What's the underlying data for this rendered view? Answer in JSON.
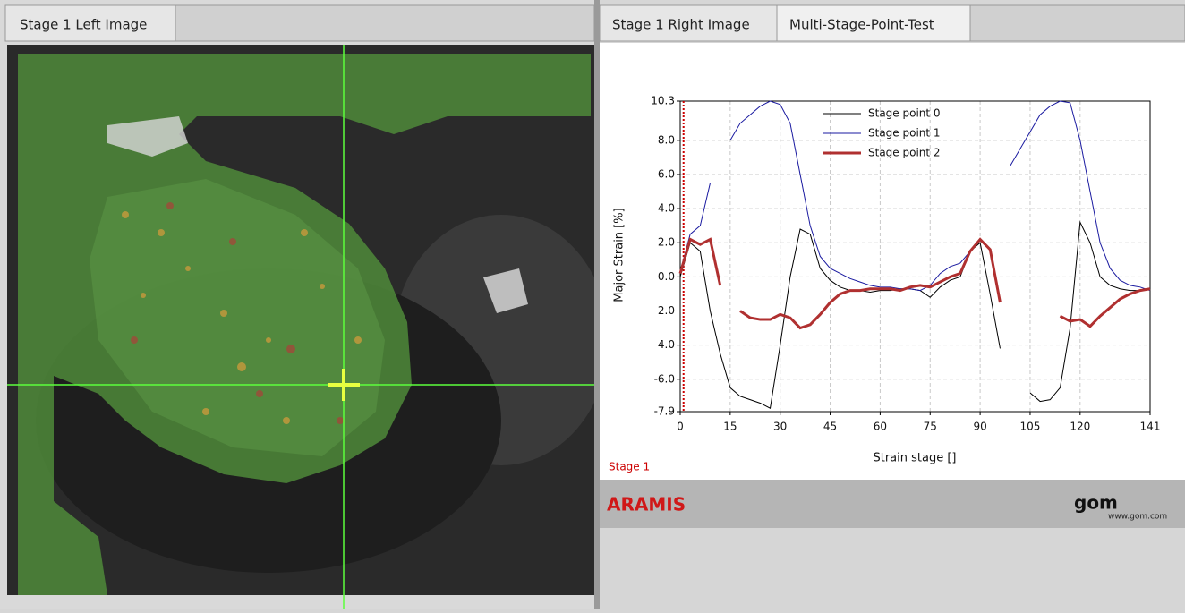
{
  "left_tabs": [
    "Stage 1 Left Image"
  ],
  "right_tabs": [
    "Stage 1 Right Image",
    "Multi-Stage-Point-Test"
  ],
  "chart_data": {
    "type": "line",
    "x_label": "Strain stage []",
    "y_label": "Major Strain [%]",
    "xlim": [
      0,
      141
    ],
    "ylim": [
      -7.9,
      10.3
    ],
    "xticks": [
      0,
      15,
      30,
      45,
      60,
      75,
      90,
      105,
      120,
      141
    ],
    "yticks": [
      -7.9,
      {
        "value": -6,
        "label": "-6.0"
      },
      {
        "value": -4,
        "label": "-4.0"
      },
      {
        "value": -2,
        "label": "-2.0"
      },
      {
        "value": 0,
        "label": "0.0"
      },
      {
        "value": 2,
        "label": "2.0"
      },
      {
        "value": 4,
        "label": "4.0"
      },
      {
        "value": 6,
        "label": "6.0"
      },
      {
        "value": 8,
        "label": "8.0"
      },
      10.3
    ],
    "grid": true,
    "legend": "upper-center",
    "current_stage": 1,
    "current_stage_color": "#cc0000",
    "x": [
      0,
      3,
      6,
      9,
      12,
      15,
      18,
      21,
      24,
      27,
      30,
      33,
      36,
      39,
      42,
      45,
      48,
      51,
      54,
      57,
      60,
      63,
      66,
      69,
      72,
      75,
      78,
      81,
      84,
      87,
      90,
      93,
      96,
      99,
      102,
      105,
      108,
      111,
      114,
      117,
      120,
      123,
      126,
      129,
      132,
      135,
      138,
      141
    ],
    "series": [
      {
        "name": "Stage point 0",
        "color": "#000000",
        "width": 1,
        "values": [
          0,
          2,
          1.5,
          -2,
          -4.5,
          -6.5,
          -7,
          -7.2,
          -7.4,
          -7.7,
          -4,
          0,
          2.8,
          2.5,
          0.5,
          -0.2,
          -0.6,
          -0.8,
          -0.8,
          -0.9,
          -0.8,
          -0.8,
          -0.7,
          -0.7,
          -0.8,
          -1.2,
          -0.6,
          -0.2,
          0,
          1.5,
          2,
          -1,
          -4.2,
          null,
          null,
          -6.8,
          -7.3,
          -7.2,
          -6.5,
          -3,
          3.2,
          2,
          0,
          -0.5,
          -0.7,
          -0.8,
          -0.8,
          -0.7
        ]
      },
      {
        "name": "Stage point 1",
        "color": "#1a1aa0",
        "width": 1,
        "values": [
          0.3,
          2.5,
          3,
          5.5,
          null,
          8,
          9,
          9.5,
          10,
          10.3,
          10.1,
          9,
          6,
          3,
          1.2,
          0.5,
          0.2,
          -0.1,
          -0.3,
          -0.5,
          -0.6,
          -0.6,
          -0.7,
          -0.7,
          -0.8,
          -0.5,
          0.2,
          0.6,
          0.8,
          1.5,
          2.2,
          null,
          null,
          6.5,
          7.5,
          8.5,
          9.5,
          10,
          10.3,
          10.2,
          8,
          5,
          2,
          0.5,
          -0.2,
          -0.5,
          -0.6,
          -0.8
        ]
      },
      {
        "name": "Stage point 2",
        "color": "#b03030",
        "width": 3,
        "values": [
          0.2,
          2.2,
          1.9,
          2.2,
          -0.5,
          null,
          -2,
          -2.4,
          -2.5,
          -2.5,
          -2.2,
          -2.4,
          -3,
          -2.8,
          -2.2,
          -1.5,
          -1,
          -0.8,
          -0.8,
          -0.7,
          -0.7,
          -0.7,
          -0.8,
          -0.6,
          -0.5,
          -0.6,
          -0.3,
          0,
          0.2,
          1.5,
          2.2,
          1.6,
          -1.5,
          null,
          null,
          null,
          null,
          null,
          -2.3,
          -2.6,
          -2.5,
          -2.9,
          -2.3,
          -1.8,
          -1.3,
          -1,
          -0.8,
          -0.7
        ]
      }
    ]
  },
  "footer": {
    "stage": "Stage 1",
    "brand": "ARAMIS",
    "logo": "gom",
    "url": "www.gom.com"
  }
}
